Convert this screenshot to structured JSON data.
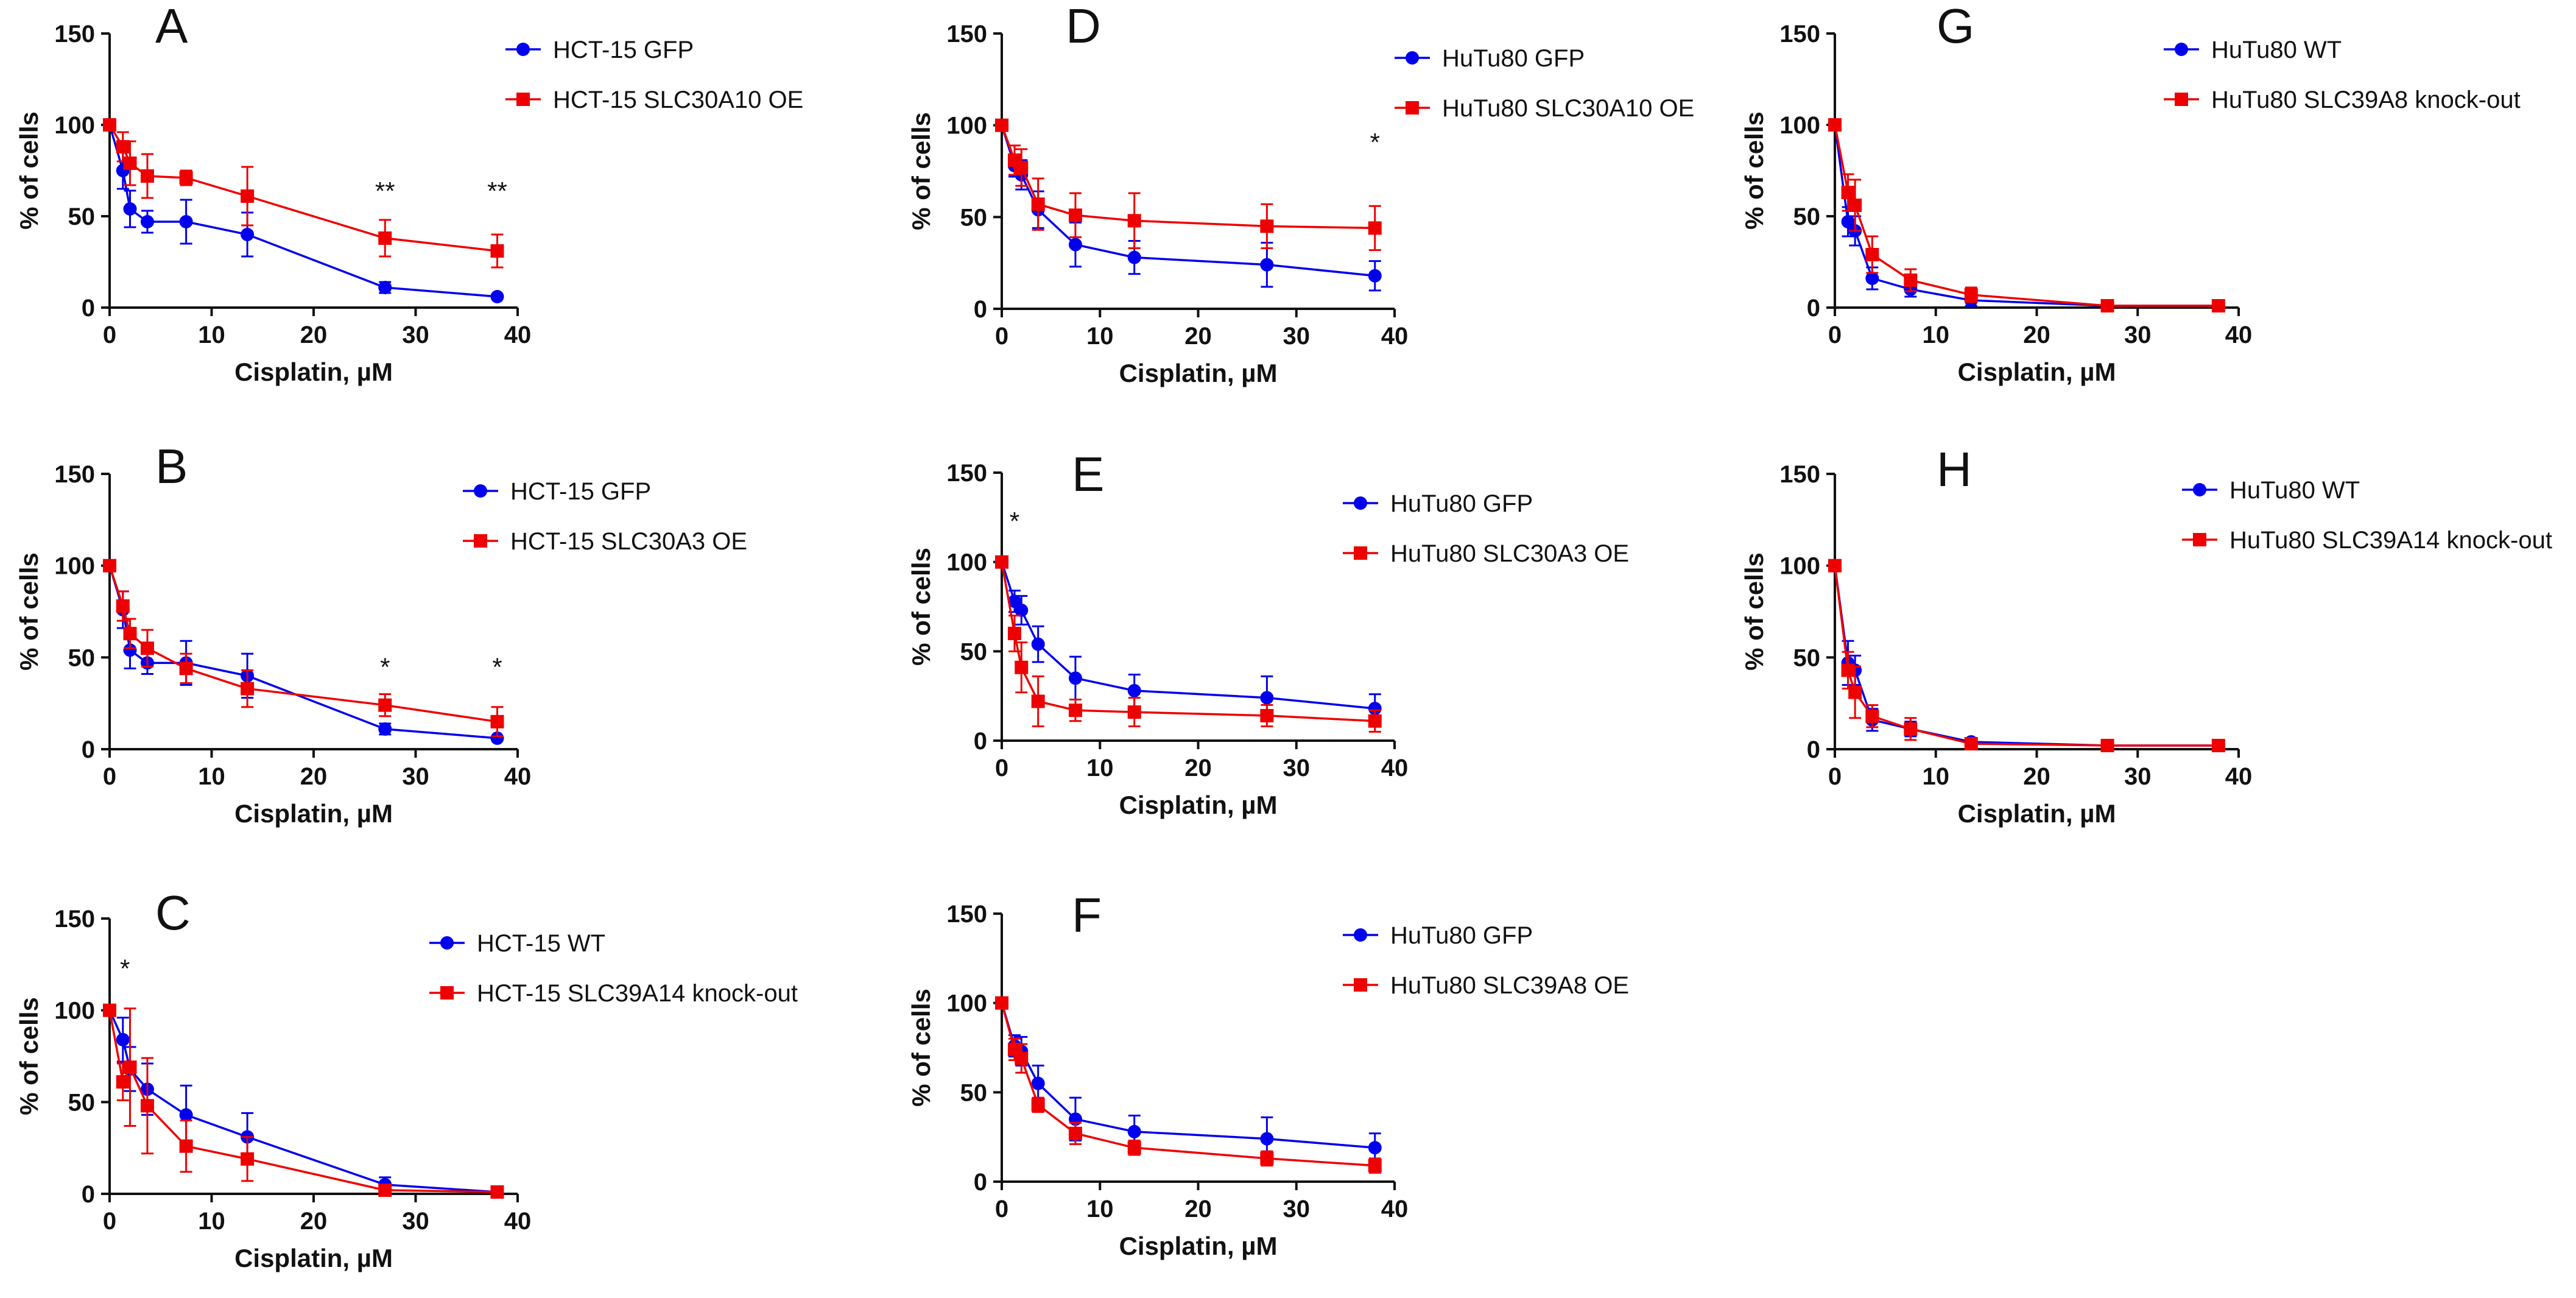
{
  "chart_data": [
    {
      "panel": "A",
      "type": "line",
      "xlabel": "Cisplatin, µM",
      "ylabel": "% of cells",
      "xlim": [
        0,
        40
      ],
      "ylim": [
        0,
        150
      ],
      "xticks": [
        "0",
        "10",
        "20",
        "30",
        "40"
      ],
      "yticks": [
        "0",
        "50",
        "100",
        "150"
      ],
      "x": [
        0,
        1.3,
        2,
        3.7,
        7.5,
        13.5,
        27,
        38
      ],
      "series": [
        {
          "name": "HCT-15 GFP",
          "color": "#0000ee",
          "marker": "circle",
          "values": [
            100,
            75,
            54,
            47,
            47,
            40,
            11,
            6
          ],
          "errors": [
            0,
            10,
            10,
            6,
            12,
            12,
            3,
            1
          ]
        },
        {
          "name": "HCT-15 SLC30A10 OE",
          "color": "#ee0000",
          "marker": "square",
          "values": [
            100,
            88,
            79,
            72,
            71,
            61,
            38,
            31
          ],
          "errors": [
            0,
            8,
            12,
            12,
            4,
            16,
            10,
            9
          ]
        }
      ],
      "annotations": [
        {
          "x": 27,
          "y": 59,
          "text": "**"
        },
        {
          "x": 38,
          "y": 59,
          "text": "**"
        }
      ]
    },
    {
      "panel": "B",
      "type": "line",
      "xlabel": "Cisplatin, µM",
      "ylabel": "% of cells",
      "xlim": [
        0,
        40
      ],
      "ylim": [
        0,
        150
      ],
      "xticks": [
        "0",
        "10",
        "20",
        "30",
        "40"
      ],
      "yticks": [
        "0",
        "50",
        "100",
        "150"
      ],
      "x": [
        0,
        1.3,
        2,
        3.7,
        7.5,
        13.5,
        27,
        38
      ],
      "series": [
        {
          "name": "HCT-15 GFP",
          "color": "#0000ee",
          "marker": "circle",
          "values": [
            100,
            76,
            54,
            47,
            47,
            40,
            11,
            6
          ],
          "errors": [
            0,
            10,
            10,
            6,
            12,
            12,
            3,
            1
          ]
        },
        {
          "name": "HCT-15 SLC30A3 OE",
          "color": "#ee0000",
          "marker": "square",
          "values": [
            100,
            78,
            63,
            55,
            44,
            33,
            24,
            15
          ],
          "errors": [
            0,
            8,
            8,
            10,
            8,
            10,
            6,
            8
          ]
        }
      ],
      "annotations": [
        {
          "x": 27,
          "y": 40,
          "text": "*"
        },
        {
          "x": 38,
          "y": 40,
          "text": "*"
        }
      ]
    },
    {
      "panel": "C",
      "type": "line",
      "xlabel": "Cisplatin, µM",
      "ylabel": "% of cells",
      "xlim": [
        0,
        40
      ],
      "ylim": [
        0,
        150
      ],
      "xticks": [
        "0",
        "10",
        "20",
        "30",
        "40"
      ],
      "yticks": [
        "0",
        "50",
        "100",
        "150"
      ],
      "x": [
        0,
        1.3,
        2,
        3.7,
        7.5,
        13.5,
        27,
        38
      ],
      "series": [
        {
          "name": "HCT-15 WT",
          "color": "#0000ee",
          "marker": "circle",
          "values": [
            100,
            84,
            68,
            57,
            43,
            31,
            5,
            1
          ],
          "errors": [
            0,
            12,
            12,
            14,
            16,
            13,
            4,
            1
          ]
        },
        {
          "name": "HCT-15 SLC39A14 knock-out",
          "color": "#ee0000",
          "marker": "square",
          "values": [
            100,
            61,
            69,
            48,
            26,
            19,
            2,
            1
          ],
          "errors": [
            0,
            10,
            32,
            26,
            14,
            12,
            2,
            1
          ]
        }
      ],
      "annotations": [
        {
          "x": 1.5,
          "y": 118,
          "text": "*"
        }
      ]
    },
    {
      "panel": "D",
      "type": "line",
      "xlabel": "Cisplatin, µM",
      "ylabel": "% of cells",
      "xlim": [
        0,
        40
      ],
      "ylim": [
        0,
        150
      ],
      "xticks": [
        "0",
        "10",
        "20",
        "30",
        "40"
      ],
      "yticks": [
        "0",
        "50",
        "100",
        "150"
      ],
      "x": [
        0,
        1.3,
        2,
        3.7,
        7.5,
        13.5,
        27,
        38
      ],
      "series": [
        {
          "name": "HuTu80 GFP",
          "color": "#0000ee",
          "marker": "circle",
          "values": [
            100,
            78,
            73,
            54,
            35,
            28,
            24,
            18
          ],
          "errors": [
            0,
            6,
            8,
            10,
            12,
            9,
            12,
            8
          ]
        },
        {
          "name": "HuTu80 SLC30A10 OE",
          "color": "#ee0000",
          "marker": "square",
          "values": [
            100,
            81,
            77,
            57,
            51,
            48,
            45,
            44
          ],
          "errors": [
            0,
            8,
            10,
            14,
            12,
            15,
            12,
            12
          ]
        }
      ],
      "annotations": [
        {
          "x": 38,
          "y": 86,
          "text": "*"
        }
      ]
    },
    {
      "panel": "E",
      "type": "line",
      "xlabel": "Cisplatin, µM",
      "ylabel": "% of cells",
      "xlim": [
        0,
        40
      ],
      "ylim": [
        0,
        150
      ],
      "xticks": [
        "0",
        "10",
        "20",
        "30",
        "40"
      ],
      "yticks": [
        "0",
        "50",
        "100",
        "150"
      ],
      "x": [
        0,
        1.3,
        2,
        3.7,
        7.5,
        13.5,
        27,
        38
      ],
      "series": [
        {
          "name": "HuTu80 GFP",
          "color": "#0000ee",
          "marker": "circle",
          "values": [
            100,
            78,
            73,
            54,
            35,
            28,
            24,
            18
          ],
          "errors": [
            0,
            6,
            8,
            10,
            12,
            9,
            12,
            8
          ]
        },
        {
          "name": "HuTu80 SLC30A3 OE",
          "color": "#ee0000",
          "marker": "square",
          "values": [
            100,
            60,
            41,
            22,
            17,
            16,
            14,
            11
          ],
          "errors": [
            0,
            10,
            14,
            14,
            6,
            8,
            6,
            6
          ]
        }
      ],
      "annotations": [
        {
          "x": 1.3,
          "y": 118,
          "text": "*"
        }
      ]
    },
    {
      "panel": "F",
      "type": "line",
      "xlabel": "Cisplatin, µM",
      "ylabel": "% of cells",
      "xlim": [
        0,
        40
      ],
      "ylim": [
        0,
        150
      ],
      "xticks": [
        "0",
        "10",
        "20",
        "30",
        "40"
      ],
      "yticks": [
        "0",
        "50",
        "100",
        "150"
      ],
      "x": [
        0,
        1.3,
        2,
        3.7,
        7.5,
        13.5,
        27,
        38
      ],
      "series": [
        {
          "name": "HuTu80 GFP",
          "color": "#0000ee",
          "marker": "circle",
          "values": [
            100,
            76,
            73,
            55,
            35,
            28,
            24,
            19
          ],
          "errors": [
            0,
            6,
            8,
            10,
            12,
            9,
            12,
            8
          ]
        },
        {
          "name": "HuTu80 SLC39A8 OE",
          "color": "#ee0000",
          "marker": "square",
          "values": [
            100,
            74,
            69,
            43,
            27,
            19,
            13,
            9
          ],
          "errors": [
            0,
            6,
            8,
            4,
            6,
            4,
            4,
            4
          ]
        }
      ],
      "annotations": []
    },
    {
      "panel": "G",
      "type": "line",
      "xlabel": "Cisplatin, µM",
      "ylabel": "% of cells",
      "xlim": [
        0,
        40
      ],
      "ylim": [
        0,
        150
      ],
      "xticks": [
        "0",
        "10",
        "20",
        "30",
        "40"
      ],
      "yticks": [
        "0",
        "50",
        "100",
        "150"
      ],
      "x": [
        0,
        1.3,
        2,
        3.7,
        7.5,
        13.5,
        27,
        38
      ],
      "series": [
        {
          "name": "HuTu80 WT",
          "color": "#0000ee",
          "marker": "circle",
          "values": [
            100,
            47,
            42,
            16,
            10,
            4,
            1,
            1
          ],
          "errors": [
            0,
            8,
            8,
            6,
            4,
            3,
            1,
            1
          ]
        },
        {
          "name": "HuTu80 SLC39A8 knock-out",
          "color": "#ee0000",
          "marker": "square",
          "values": [
            100,
            63,
            56,
            29,
            15,
            7,
            1,
            1
          ],
          "errors": [
            0,
            10,
            14,
            10,
            6,
            4,
            1,
            1
          ]
        }
      ],
      "annotations": []
    },
    {
      "panel": "H",
      "type": "line",
      "xlabel": "Cisplatin, µM",
      "ylabel": "% of cells",
      "xlim": [
        0,
        40
      ],
      "ylim": [
        0,
        150
      ],
      "xticks": [
        "0",
        "10",
        "20",
        "30",
        "40"
      ],
      "yticks": [
        "0",
        "50",
        "100",
        "150"
      ],
      "x": [
        0,
        1.3,
        2,
        3.7,
        7.5,
        13.5,
        27,
        38
      ],
      "series": [
        {
          "name": "HuTu80 WT",
          "color": "#0000ee",
          "marker": "circle",
          "values": [
            100,
            47,
            43,
            16,
            11,
            4,
            2,
            2
          ],
          "errors": [
            0,
            12,
            8,
            6,
            4,
            2,
            1,
            1
          ]
        },
        {
          "name": "HuTu80 SLC39A14 knock-out",
          "color": "#ee0000",
          "marker": "square",
          "values": [
            100,
            43,
            31,
            18,
            11,
            3,
            2,
            2
          ],
          "errors": [
            0,
            10,
            14,
            6,
            6,
            2,
            1,
            1
          ]
        }
      ],
      "annotations": []
    }
  ]
}
